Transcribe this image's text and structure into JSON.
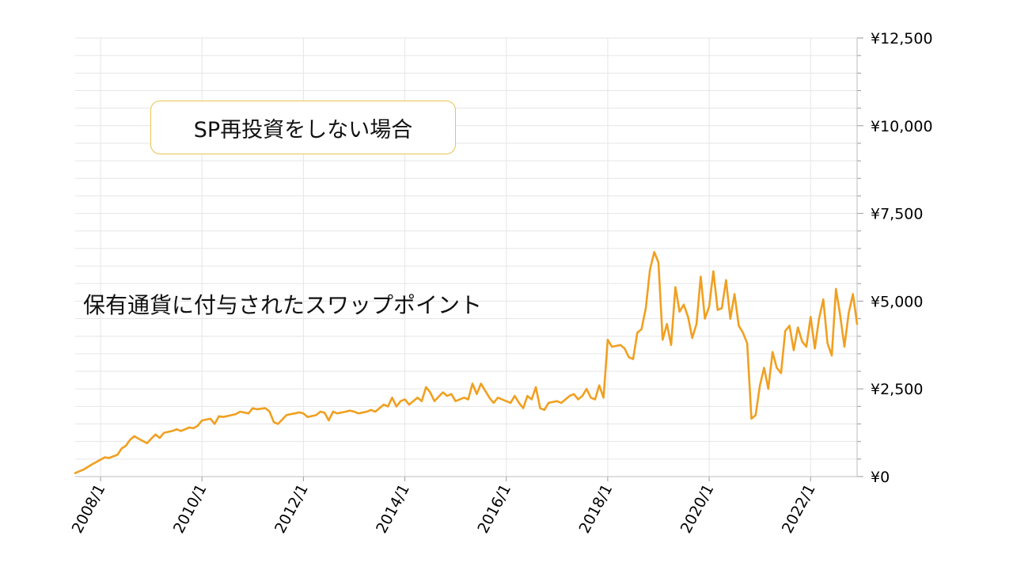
{
  "chart_data": {
    "type": "line",
    "title": "",
    "xlabel": "",
    "ylabel": "",
    "ylim": [
      0,
      12500
    ],
    "xlim": [
      "2007-07",
      "2022-12"
    ],
    "yticks": [
      0,
      2500,
      5000,
      7500,
      10000,
      12500
    ],
    "ytick_labels": [
      "¥0",
      "¥2,500",
      "¥5,000",
      "¥7,500",
      "¥10,000",
      "¥12,500"
    ],
    "xtick_labels": [
      "2008/1",
      "2010/1",
      "2012/1",
      "2014/1",
      "2016/1",
      "2018/1",
      "2020/1",
      "2022/1"
    ],
    "y_axis_position": "right",
    "grid": true,
    "legend": "none",
    "annotations": [
      "SP再投資をしない場合",
      "保有通貨に付与されたスワップポイント"
    ],
    "series": [
      {
        "color": "#f0a020",
        "points": [
          [
            "2007-07",
            100
          ],
          [
            "2007-09",
            200
          ],
          [
            "2007-11",
            350
          ],
          [
            "2008-01",
            480
          ],
          [
            "2008-02",
            550
          ],
          [
            "2008-03",
            530
          ],
          [
            "2008-05",
            620
          ],
          [
            "2008-06",
            800
          ],
          [
            "2008-07",
            880
          ],
          [
            "2008-08",
            1050
          ],
          [
            "2008-09",
            1150
          ],
          [
            "2008-10",
            1080
          ],
          [
            "2008-12",
            950
          ],
          [
            "2009-01",
            1080
          ],
          [
            "2009-02",
            1200
          ],
          [
            "2009-03",
            1100
          ],
          [
            "2009-04",
            1250
          ],
          [
            "2009-06",
            1300
          ],
          [
            "2009-07",
            1350
          ],
          [
            "2009-08",
            1300
          ],
          [
            "2009-10",
            1400
          ],
          [
            "2009-11",
            1380
          ],
          [
            "2009-12",
            1450
          ],
          [
            "2010-01",
            1600
          ],
          [
            "2010-03",
            1650
          ],
          [
            "2010-04",
            1500
          ],
          [
            "2010-05",
            1720
          ],
          [
            "2010-06",
            1700
          ],
          [
            "2010-08",
            1750
          ],
          [
            "2010-09",
            1780
          ],
          [
            "2010-10",
            1850
          ],
          [
            "2010-12",
            1800
          ],
          [
            "2011-01",
            1950
          ],
          [
            "2011-02",
            1920
          ],
          [
            "2011-04",
            1950
          ],
          [
            "2011-05",
            1850
          ],
          [
            "2011-06",
            1550
          ],
          [
            "2011-07",
            1500
          ],
          [
            "2011-09",
            1750
          ],
          [
            "2011-10",
            1780
          ],
          [
            "2011-11",
            1800
          ],
          [
            "2011-12",
            1830
          ],
          [
            "2012-01",
            1800
          ],
          [
            "2012-02",
            1700
          ],
          [
            "2012-04",
            1750
          ],
          [
            "2012-05",
            1850
          ],
          [
            "2012-06",
            1820
          ],
          [
            "2012-07",
            1600
          ],
          [
            "2012-08",
            1850
          ],
          [
            "2012-09",
            1800
          ],
          [
            "2012-11",
            1850
          ],
          [
            "2012-12",
            1880
          ],
          [
            "2013-01",
            1850
          ],
          [
            "2013-02",
            1800
          ],
          [
            "2013-04",
            1850
          ],
          [
            "2013-05",
            1900
          ],
          [
            "2013-06",
            1850
          ],
          [
            "2013-08",
            2050
          ],
          [
            "2013-09",
            2000
          ],
          [
            "2013-10",
            2250
          ],
          [
            "2013-11",
            2000
          ],
          [
            "2013-12",
            2150
          ],
          [
            "2014-01",
            2200
          ],
          [
            "2014-02",
            2050
          ],
          [
            "2014-04",
            2250
          ],
          [
            "2014-05",
            2150
          ],
          [
            "2014-06",
            2550
          ],
          [
            "2014-07",
            2400
          ],
          [
            "2014-08",
            2150
          ],
          [
            "2014-10",
            2400
          ],
          [
            "2014-11",
            2300
          ],
          [
            "2014-12",
            2350
          ],
          [
            "2015-01",
            2150
          ],
          [
            "2015-03",
            2250
          ],
          [
            "2015-04",
            2200
          ],
          [
            "2015-05",
            2650
          ],
          [
            "2015-06",
            2350
          ],
          [
            "2015-07",
            2650
          ],
          [
            "2015-09",
            2250
          ],
          [
            "2015-10",
            2100
          ],
          [
            "2015-11",
            2250
          ],
          [
            "2016-01",
            2150
          ],
          [
            "2016-02",
            2100
          ],
          [
            "2016-03",
            2300
          ],
          [
            "2016-04",
            2100
          ],
          [
            "2016-05",
            1950
          ],
          [
            "2016-06",
            2300
          ],
          [
            "2016-07",
            2200
          ],
          [
            "2016-08",
            2550
          ],
          [
            "2016-09",
            1950
          ],
          [
            "2016-10",
            1900
          ],
          [
            "2016-11",
            2100
          ],
          [
            "2017-01",
            2150
          ],
          [
            "2017-02",
            2100
          ],
          [
            "2017-04",
            2300
          ],
          [
            "2017-05",
            2350
          ],
          [
            "2017-06",
            2200
          ],
          [
            "2017-07",
            2300
          ],
          [
            "2017-08",
            2500
          ],
          [
            "2017-09",
            2250
          ],
          [
            "2017-10",
            2200
          ],
          [
            "2017-11",
            2600
          ],
          [
            "2017-12",
            2250
          ],
          [
            "2018-01",
            3900
          ],
          [
            "2018-02",
            3700
          ],
          [
            "2018-04",
            3750
          ],
          [
            "2018-05",
            3650
          ],
          [
            "2018-06",
            3400
          ],
          [
            "2018-07",
            3350
          ],
          [
            "2018-08",
            4100
          ],
          [
            "2018-09",
            4200
          ],
          [
            "2018-10",
            4800
          ],
          [
            "2018-11",
            5900
          ],
          [
            "2018-12",
            6400
          ],
          [
            "2019-01",
            6100
          ],
          [
            "2019-02",
            3900
          ],
          [
            "2019-03",
            4350
          ],
          [
            "2019-04",
            3750
          ],
          [
            "2019-05",
            5400
          ],
          [
            "2019-06",
            4700
          ],
          [
            "2019-07",
            4900
          ],
          [
            "2019-08",
            4550
          ],
          [
            "2019-09",
            3950
          ],
          [
            "2019-10",
            4350
          ],
          [
            "2019-11",
            5700
          ],
          [
            "2019-12",
            4500
          ],
          [
            "2020-01",
            4850
          ],
          [
            "2020-02",
            5850
          ],
          [
            "2020-03",
            4750
          ],
          [
            "2020-04",
            4800
          ],
          [
            "2020-05",
            5600
          ],
          [
            "2020-06",
            4500
          ],
          [
            "2020-07",
            5200
          ],
          [
            "2020-08",
            4300
          ],
          [
            "2020-09",
            4100
          ],
          [
            "2020-10",
            3800
          ],
          [
            "2020-11",
            1650
          ],
          [
            "2020-12",
            1750
          ],
          [
            "2021-01",
            2600
          ],
          [
            "2021-02",
            3100
          ],
          [
            "2021-03",
            2500
          ],
          [
            "2021-04",
            3550
          ],
          [
            "2021-05",
            3100
          ],
          [
            "2021-06",
            2950
          ],
          [
            "2021-07",
            4150
          ],
          [
            "2021-08",
            4300
          ],
          [
            "2021-09",
            3600
          ],
          [
            "2021-10",
            4250
          ],
          [
            "2021-11",
            3850
          ],
          [
            "2021-12",
            3700
          ],
          [
            "2022-01",
            4550
          ],
          [
            "2022-02",
            3650
          ],
          [
            "2022-03",
            4500
          ],
          [
            "2022-04",
            5050
          ],
          [
            "2022-05",
            3800
          ],
          [
            "2022-06",
            3450
          ],
          [
            "2022-07",
            5350
          ],
          [
            "2022-08",
            4600
          ],
          [
            "2022-09",
            3700
          ],
          [
            "2022-10",
            4650
          ],
          [
            "2022-11",
            5200
          ],
          [
            "2022-12",
            4350
          ]
        ]
      }
    ]
  }
}
